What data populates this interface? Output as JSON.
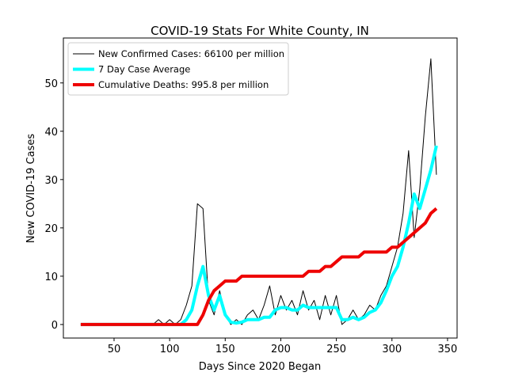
{
  "chart_data": {
    "type": "line",
    "title": "COVID-19 Stats For White County, IN",
    "x_label": "Days Since 2020 Began",
    "y_label": "New COVID-19 Cases",
    "x": [
      20,
      25,
      30,
      35,
      40,
      45,
      50,
      55,
      60,
      65,
      70,
      75,
      80,
      85,
      90,
      95,
      100,
      105,
      110,
      115,
      120,
      125,
      130,
      135,
      140,
      145,
      150,
      155,
      160,
      165,
      170,
      175,
      180,
      185,
      190,
      195,
      200,
      205,
      210,
      215,
      220,
      225,
      230,
      235,
      240,
      245,
      250,
      255,
      260,
      265,
      270,
      275,
      280,
      285,
      290,
      295,
      300,
      305,
      310,
      315,
      320,
      325,
      330,
      335,
      340
    ],
    "series": [
      {
        "name": "New Confirmed Cases: 66100 per million",
        "color": "#000000",
        "width": 1,
        "values": [
          0,
          0,
          0,
          0,
          0,
          0,
          0,
          0,
          0,
          0,
          0,
          0,
          0,
          0,
          1,
          0,
          1,
          0,
          1,
          4,
          8,
          25,
          24,
          5,
          2,
          7,
          2,
          0,
          1,
          0,
          2,
          3,
          1,
          4,
          8,
          2,
          6,
          3,
          5,
          2,
          7,
          3,
          5,
          1,
          6,
          2,
          6,
          0,
          1,
          3,
          1,
          2,
          4,
          3,
          6,
          8,
          12,
          16,
          23,
          36,
          18,
          28,
          43,
          55,
          31
        ]
      },
      {
        "name": "7 Day Case Average",
        "color": "#00ffff",
        "width": 4,
        "values": [
          0,
          0,
          0,
          0,
          0,
          0,
          0,
          0,
          0,
          0,
          0,
          0,
          0,
          0,
          0,
          0,
          0,
          0,
          0,
          1,
          3,
          8,
          12,
          6,
          3,
          6,
          2,
          0.5,
          0.3,
          0.5,
          1,
          1,
          1,
          1.5,
          1.5,
          3,
          3.5,
          3.5,
          3,
          3,
          4,
          3.5,
          3.5,
          3.5,
          3.5,
          3.5,
          3.5,
          1,
          1,
          1.5,
          1,
          1.5,
          2.5,
          3,
          4.5,
          7,
          10,
          12,
          16,
          21,
          27,
          24,
          28,
          32,
          37
        ]
      },
      {
        "name": "Cumulative Deaths: 995.8 per million",
        "color": "#ee0000",
        "width": 4,
        "values": [
          0,
          0,
          0,
          0,
          0,
          0,
          0,
          0,
          0,
          0,
          0,
          0,
          0,
          0,
          0,
          0,
          0,
          0,
          0,
          0,
          0,
          0,
          2,
          5,
          7,
          8,
          9,
          9,
          9,
          10,
          10,
          10,
          10,
          10,
          10,
          10,
          10,
          10,
          10,
          10,
          10,
          11,
          11,
          11,
          12,
          12,
          13,
          14,
          14,
          14,
          14,
          15,
          15,
          15,
          15,
          15,
          16,
          16,
          17,
          18,
          19,
          20,
          21,
          23,
          24
        ]
      }
    ],
    "xlim": [
      4.4,
      358.6
    ],
    "ylim": [
      -2.8,
      59.3
    ],
    "xticks": [
      50,
      100,
      150,
      200,
      250,
      300,
      350
    ],
    "yticks": [
      0,
      10,
      20,
      30,
      40,
      50
    ],
    "grid": false,
    "legend": "upper-left"
  }
}
